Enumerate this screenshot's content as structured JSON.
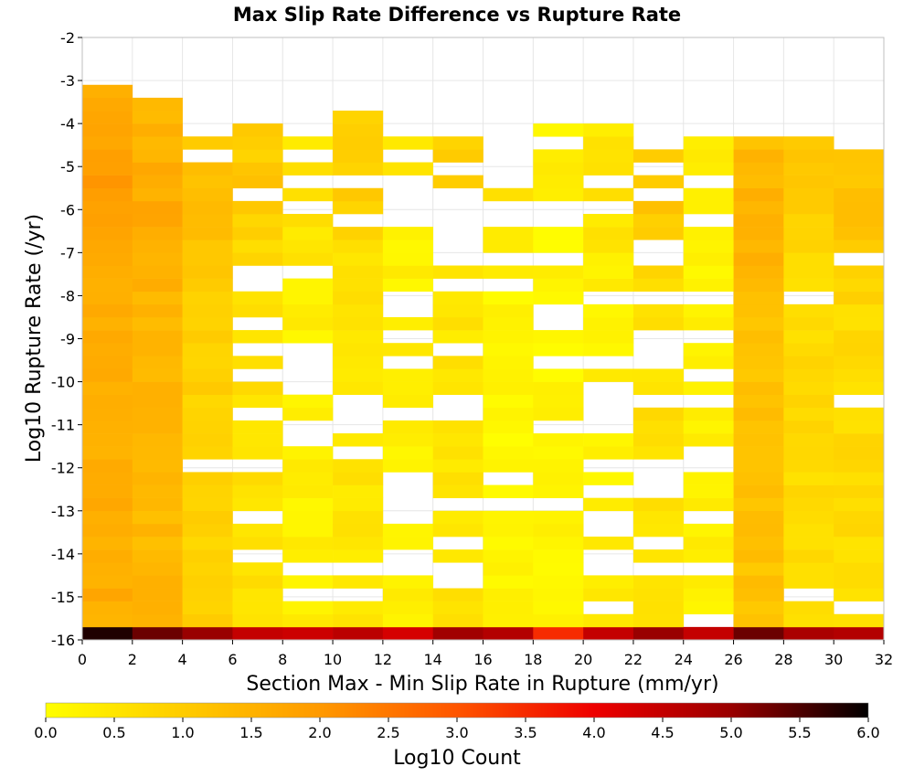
{
  "chart_data": {
    "type": "heatmap",
    "title": "Max Slip Rate Difference vs Rupture Rate",
    "xlabel": "Section Max - Min Slip Rate in Rupture (mm/yr)",
    "ylabel": "Log10 Rupture Rate (/yr)",
    "xlim": [
      0,
      32
    ],
    "ylim": [
      -16,
      -2
    ],
    "x_ticks": [
      "0",
      "2",
      "4",
      "6",
      "8",
      "10",
      "12",
      "14",
      "16",
      "18",
      "20",
      "22",
      "24",
      "26",
      "28",
      "30",
      "32"
    ],
    "y_ticks": [
      "-16",
      "-15",
      "-14",
      "-13",
      "-12",
      "-11",
      "-10",
      "-9",
      "-8",
      "-7",
      "-6",
      "-5",
      "-4",
      "-3",
      "-2"
    ],
    "x_bin_width": 2,
    "y_bin_width": 0.3,
    "color_scale": {
      "label": "Log10 Count",
      "min": 0.0,
      "max": 6.0,
      "ticks": [
        "0.0",
        "0.5",
        "1.0",
        "1.5",
        "2.0",
        "2.5",
        "3.0",
        "3.5",
        "4.0",
        "4.5",
        "5.0",
        "5.5",
        "6.0"
      ],
      "colors": [
        "#ffff00",
        "#ffcc00",
        "#ff9900",
        "#ff5500",
        "#ee0000",
        "#990000",
        "#000000"
      ]
    },
    "columns": [
      {
        "x_start": 0,
        "y_range": [
          -16,
          -3
        ],
        "base": 1.6,
        "peak_y": -5.8,
        "peak": 2.0,
        "bottom_row": 5.8
      },
      {
        "x_start": 2,
        "y_range": [
          -16,
          -3.3
        ],
        "base": 1.4,
        "peak_y": -6.0,
        "peak": 1.7,
        "bottom_row": 5.3
      },
      {
        "x_start": 4,
        "y_range": [
          -16,
          -3.9
        ],
        "base": 0.9,
        "peak_y": -6.0,
        "peak": 1.4,
        "bottom_row": 5.0
      },
      {
        "x_start": 6,
        "y_range": [
          -16,
          -3.9
        ],
        "base": 0.6,
        "peak_y": -5.2,
        "peak": 1.1,
        "bottom_row": 4.5
      },
      {
        "x_start": 8,
        "y_range": [
          -16,
          -3.9
        ],
        "base": 0.3,
        "peak_y": -5.5,
        "peak": 0.7,
        "bottom_row": 4.4
      },
      {
        "x_start": 10,
        "y_range": [
          -16,
          -3.6
        ],
        "base": 0.5,
        "peak_y": -5.2,
        "peak": 1.0,
        "bottom_row": 4.6
      },
      {
        "x_start": 12,
        "y_range": [
          -16,
          -4.2
        ],
        "base": 0.3,
        "peak_y": -4.4,
        "peak": 0.5,
        "bottom_row": 4.3
      },
      {
        "x_start": 14,
        "y_range": [
          -16,
          -4.2
        ],
        "base": 0.5,
        "peak_y": -5.5,
        "peak": 1.0,
        "bottom_row": 4.9
      },
      {
        "x_start": 16,
        "y_range": [
          -16,
          -5.5
        ],
        "base": 0.2,
        "peak_y": -5.8,
        "peak": 0.5,
        "bottom_row": 4.7
      },
      {
        "x_start": 18,
        "y_range": [
          -16,
          -3.9
        ],
        "base": 0.2,
        "peak_y": -4.4,
        "peak": 0.3,
        "bottom_row": 3.5
      },
      {
        "x_start": 20,
        "y_range": [
          -16,
          -3.9
        ],
        "base": 0.3,
        "peak_y": -5.5,
        "peak": 0.6,
        "bottom_row": 4.5
      },
      {
        "x_start": 22,
        "y_range": [
          -16,
          -4.2
        ],
        "base": 0.6,
        "peak_y": -5.8,
        "peak": 1.1,
        "bottom_row": 5.0
      },
      {
        "x_start": 24,
        "y_range": [
          -16,
          -3.9
        ],
        "base": 0.3,
        "peak_y": -4.8,
        "peak": 0.5,
        "bottom_row": 4.5
      },
      {
        "x_start": 26,
        "y_range": [
          -16,
          -4.2
        ],
        "base": 1.2,
        "peak_y": -6.3,
        "peak": 1.6,
        "bottom_row": 5.3
      },
      {
        "x_start": 28,
        "y_range": [
          -16,
          -4.2
        ],
        "base": 0.7,
        "peak_y": -5.2,
        "peak": 1.1,
        "bottom_row": 4.8
      },
      {
        "x_start": 30,
        "y_range": [
          -16,
          -4.5
        ],
        "base": 0.7,
        "peak_y": -6.0,
        "peak": 1.3,
        "bottom_row": 4.7
      }
    ],
    "grid": true,
    "legend": "colorbar-bottom"
  }
}
